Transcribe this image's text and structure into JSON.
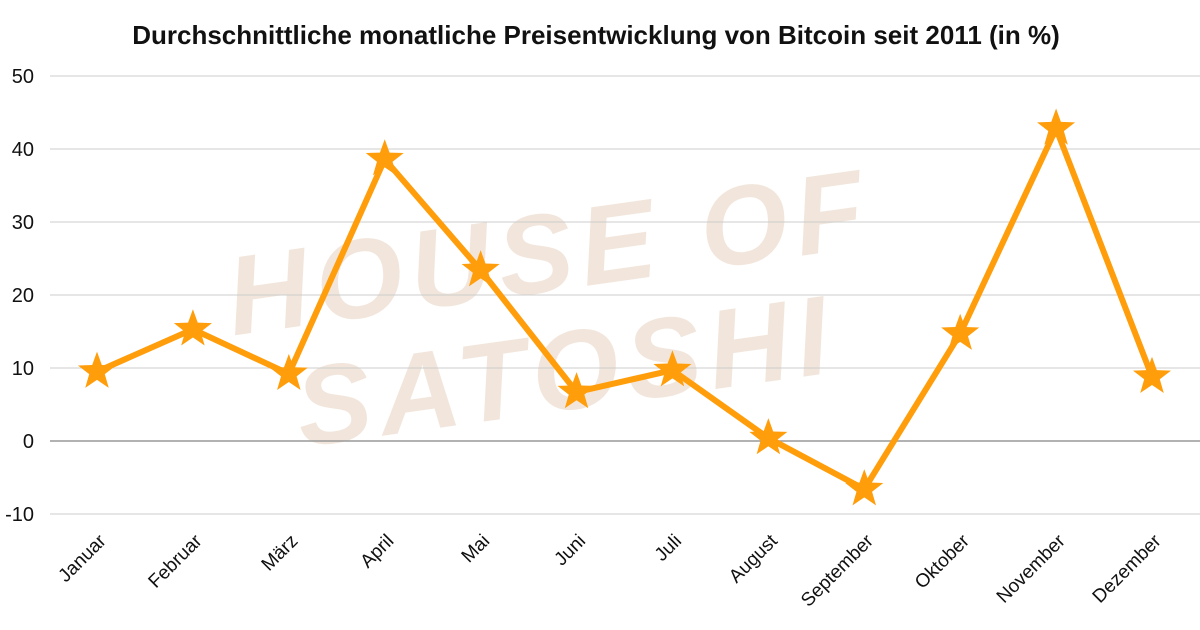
{
  "chart_data": {
    "type": "line",
    "title": "Durchschnittliche monatliche Preisentwicklung von Bitcoin seit 2011 (in %)",
    "xlabel": "",
    "ylabel": "",
    "categories": [
      "Januar",
      "Februar",
      "März",
      "April",
      "Mai",
      "Juni",
      "Juli",
      "August",
      "September",
      "Oktober",
      "November",
      "Dezember"
    ],
    "series": [
      {
        "values": [
          9.5,
          15.3,
          9.2,
          38.6,
          23.4,
          6.7,
          9.7,
          0.4,
          -6.6,
          14.7,
          42.8,
          8.8
        ]
      }
    ],
    "ylim": [
      -10,
      50
    ],
    "yticks": [
      -10,
      0,
      10,
      20,
      30,
      40,
      50
    ],
    "grid": true,
    "legend": "none",
    "marker": "star",
    "colors": {
      "line": "#ff9d0a",
      "grid": "#cccccc",
      "zero_line": "#999999",
      "watermark": "#f2e6dc"
    },
    "watermark_lines": [
      "HOUSE OF",
      "SATOSHI"
    ]
  }
}
